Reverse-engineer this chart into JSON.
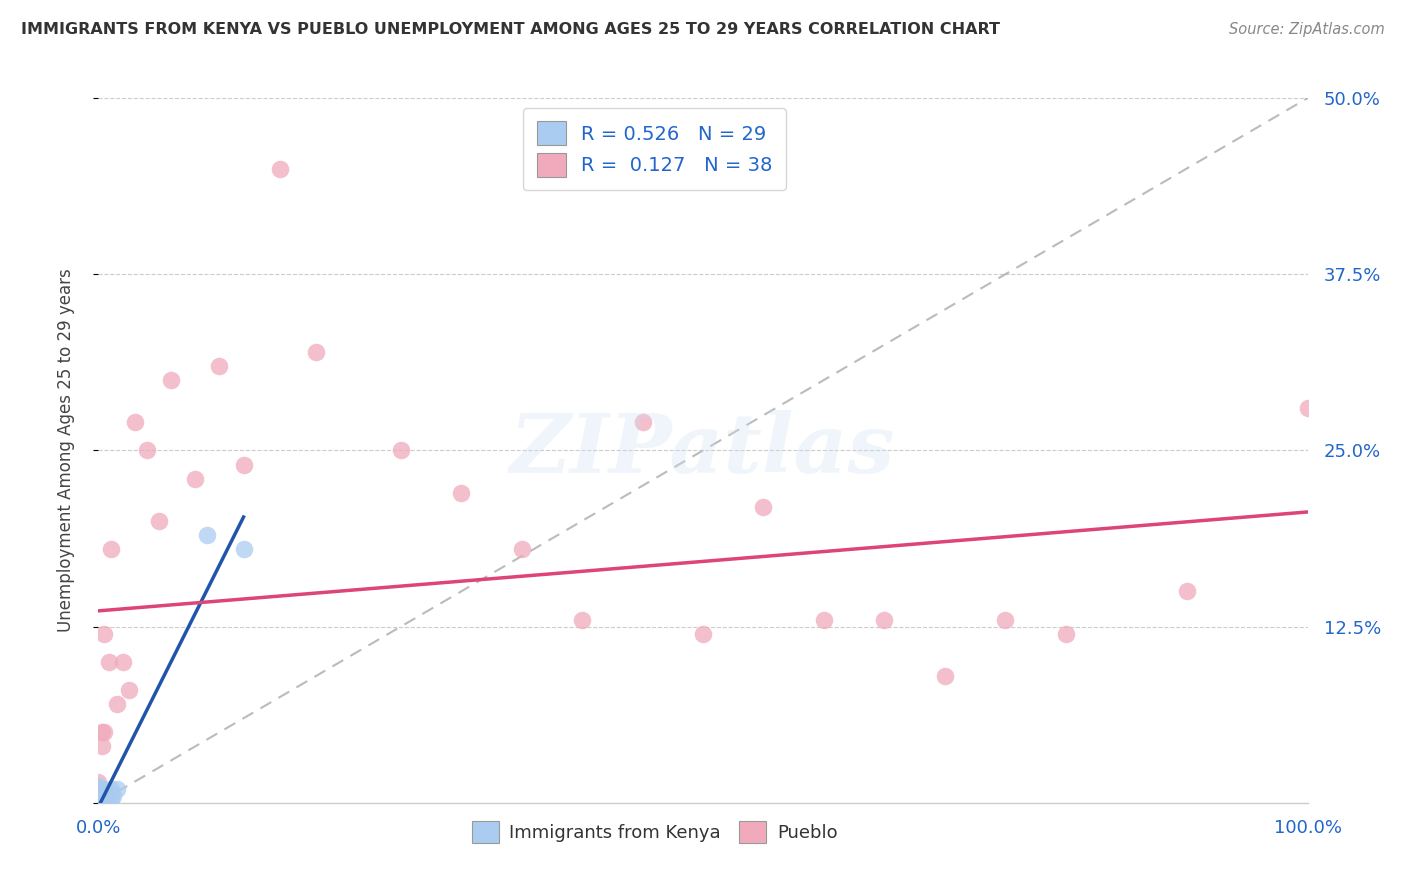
{
  "title": "IMMIGRANTS FROM KENYA VS PUEBLO UNEMPLOYMENT AMONG AGES 25 TO 29 YEARS CORRELATION CHART",
  "source": "Source: ZipAtlas.com",
  "ylabel": "Unemployment Among Ages 25 to 29 years",
  "xlim": [
    0,
    1.0
  ],
  "ylim": [
    0,
    0.5
  ],
  "ytick_positions": [
    0.0,
    0.125,
    0.25,
    0.375,
    0.5
  ],
  "ytick_labels": [
    "",
    "12.5%",
    "25.0%",
    "37.5%",
    "50.0%"
  ],
  "xtick_positions": [
    0.0,
    0.25,
    0.5,
    0.75,
    1.0
  ],
  "xtick_labels": [
    "0.0%",
    "",
    "",
    "",
    "100.0%"
  ],
  "legend_R1": "R = 0.526",
  "legend_N1": "N = 29",
  "legend_R2": "R =  0.127",
  "legend_N2": "N = 38",
  "color_kenya": "#aaccf0",
  "color_pueblo": "#f0aabb",
  "line_color_kenya": "#2255aa",
  "line_color_pueblo": "#dd4477",
  "kenya_x": [
    0.0,
    0.0,
    0.0,
    0.0,
    0.0,
    0.0,
    0.002,
    0.002,
    0.003,
    0.003,
    0.003,
    0.004,
    0.004,
    0.005,
    0.005,
    0.005,
    0.006,
    0.006,
    0.007,
    0.007,
    0.008,
    0.008,
    0.01,
    0.01,
    0.01,
    0.012,
    0.015,
    0.09,
    0.12
  ],
  "kenya_y": [
    0.0,
    0.002,
    0.004,
    0.007,
    0.01,
    0.012,
    0.0,
    0.005,
    0.0,
    0.003,
    0.007,
    0.003,
    0.01,
    0.0,
    0.003,
    0.008,
    0.002,
    0.007,
    0.003,
    0.008,
    0.003,
    0.007,
    0.003,
    0.007,
    0.01,
    0.005,
    0.01,
    0.19,
    0.18
  ],
  "pueblo_x": [
    0.0,
    0.0,
    0.0,
    0.002,
    0.003,
    0.003,
    0.004,
    0.005,
    0.005,
    0.008,
    0.009,
    0.01,
    0.015,
    0.02,
    0.025,
    0.03,
    0.04,
    0.05,
    0.06,
    0.08,
    0.1,
    0.12,
    0.15,
    0.18,
    0.25,
    0.3,
    0.35,
    0.4,
    0.45,
    0.5,
    0.55,
    0.6,
    0.65,
    0.7,
    0.75,
    0.8,
    0.9,
    1.0
  ],
  "pueblo_y": [
    0.005,
    0.01,
    0.015,
    0.005,
    0.04,
    0.05,
    0.005,
    0.12,
    0.05,
    0.005,
    0.1,
    0.18,
    0.07,
    0.1,
    0.08,
    0.27,
    0.25,
    0.2,
    0.3,
    0.23,
    0.31,
    0.24,
    0.45,
    0.32,
    0.25,
    0.22,
    0.18,
    0.13,
    0.27,
    0.12,
    0.21,
    0.13,
    0.13,
    0.09,
    0.13,
    0.12,
    0.15,
    0.28
  ],
  "watermark_text": "ZIPatlas",
  "background_color": "#ffffff",
  "grid_color": "#cccccc",
  "title_color": "#333333",
  "source_color": "#888888",
  "ylabel_color": "#444444",
  "tick_color": "#2266cc"
}
